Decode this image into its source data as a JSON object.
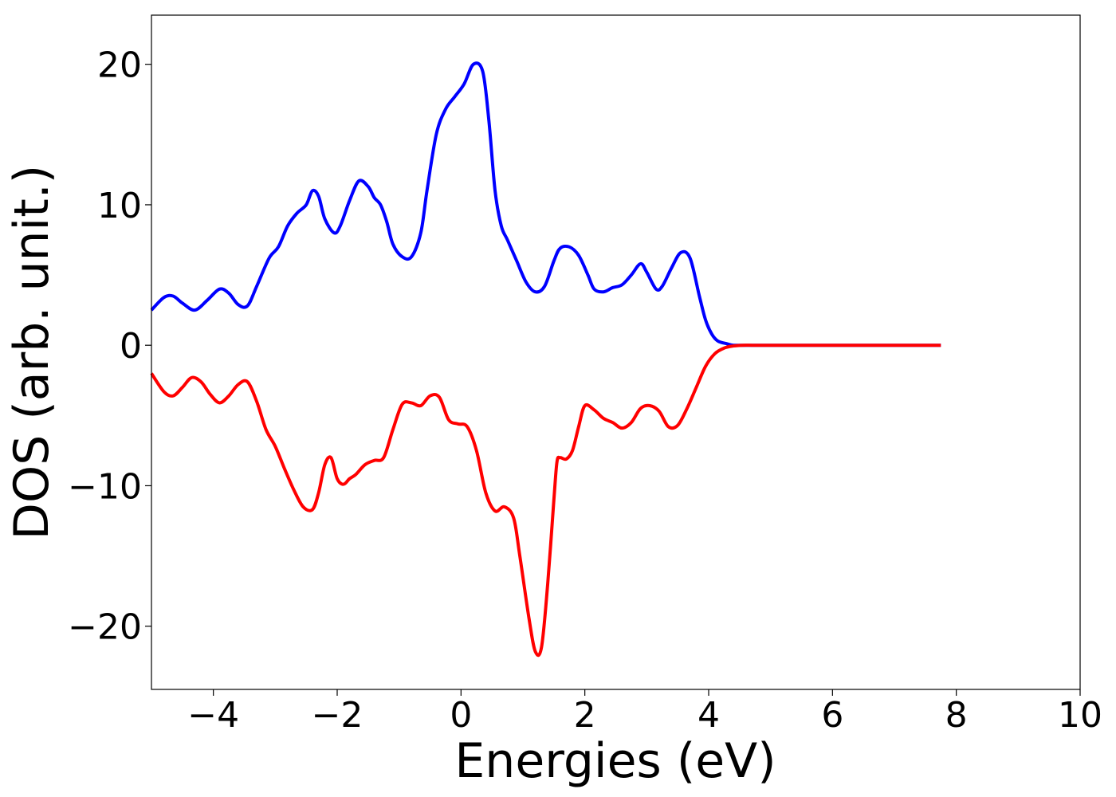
{
  "chart_data": {
    "type": "line",
    "xlabel": "Energies (eV)",
    "ylabel": "DOS (arb. unit.)",
    "xlim": [
      -5,
      10
    ],
    "ylim": [
      -24.5,
      23.5
    ],
    "grid": false,
    "xticks": [
      -4,
      -2,
      0,
      2,
      4,
      6,
      8,
      10
    ],
    "xtick_labels": [
      "−4",
      "−2",
      "0",
      "2",
      "4",
      "6",
      "8",
      "10"
    ],
    "yticks": [
      -20,
      -10,
      0,
      10,
      20
    ],
    "ytick_labels": [
      "−20",
      "−10",
      "0",
      "10",
      "20"
    ],
    "series": [
      {
        "color": "#0000ff",
        "x": [
          -5.0,
          -4.8,
          -4.65,
          -4.5,
          -4.3,
          -4.1,
          -3.9,
          -3.75,
          -3.6,
          -3.45,
          -3.3,
          -3.1,
          -2.95,
          -2.8,
          -2.65,
          -2.5,
          -2.4,
          -2.3,
          -2.2,
          -2.05,
          -1.95,
          -1.8,
          -1.65,
          -1.5,
          -1.4,
          -1.3,
          -1.2,
          -1.1,
          -0.95,
          -0.8,
          -0.65,
          -0.55,
          -0.4,
          -0.25,
          -0.1,
          0.05,
          0.2,
          0.35,
          0.45,
          0.55,
          0.65,
          0.75,
          0.9,
          1.05,
          1.2,
          1.35,
          1.5,
          1.6,
          1.75,
          1.9,
          2.05,
          2.15,
          2.3,
          2.45,
          2.6,
          2.75,
          2.9,
          3.0,
          3.15,
          3.25,
          3.4,
          3.55,
          3.7,
          3.85,
          3.95,
          4.05,
          4.15,
          4.3,
          4.4,
          4.55,
          4.7,
          4.9,
          5.1,
          5.5,
          6.0,
          7.0,
          7.75
        ],
        "y": [
          2.5,
          3.4,
          3.5,
          3.0,
          2.5,
          3.2,
          4.0,
          3.7,
          2.9,
          2.8,
          4.2,
          6.2,
          7.0,
          8.5,
          9.4,
          10.0,
          11.0,
          10.6,
          9.0,
          8.0,
          8.5,
          10.3,
          11.7,
          11.3,
          10.5,
          10.0,
          8.8,
          7.2,
          6.3,
          6.3,
          8.0,
          11.0,
          15.0,
          16.8,
          17.7,
          18.6,
          20.0,
          19.5,
          16.0,
          11.0,
          8.5,
          7.5,
          6.0,
          4.5,
          3.8,
          4.2,
          6.0,
          6.9,
          7.0,
          6.4,
          5.0,
          4.0,
          3.8,
          4.1,
          4.3,
          5.0,
          5.8,
          5.2,
          4.0,
          4.2,
          5.5,
          6.6,
          6.2,
          3.5,
          1.8,
          0.8,
          0.3,
          0.1,
          0.0,
          0.0,
          0.0,
          0.0,
          0.0,
          0.0,
          0.0,
          0.0,
          0.0
        ]
      },
      {
        "color": "#ff0000",
        "x": [
          -5.0,
          -4.8,
          -4.65,
          -4.5,
          -4.35,
          -4.2,
          -4.05,
          -3.9,
          -3.75,
          -3.6,
          -3.45,
          -3.3,
          -3.15,
          -3.0,
          -2.85,
          -2.7,
          -2.55,
          -2.4,
          -2.3,
          -2.2,
          -2.1,
          -2.0,
          -1.9,
          -1.8,
          -1.7,
          -1.55,
          -1.4,
          -1.25,
          -1.1,
          -0.95,
          -0.8,
          -0.65,
          -0.5,
          -0.35,
          -0.2,
          -0.05,
          0.1,
          0.25,
          0.4,
          0.55,
          0.7,
          0.85,
          0.95,
          1.1,
          1.2,
          1.3,
          1.4,
          1.5,
          1.55,
          1.6,
          1.7,
          1.8,
          1.9,
          2.0,
          2.15,
          2.3,
          2.45,
          2.6,
          2.75,
          2.9,
          3.05,
          3.2,
          3.35,
          3.5,
          3.65,
          3.8,
          3.95,
          4.1,
          4.25,
          4.4,
          4.55,
          4.7,
          4.85,
          5.0,
          5.2,
          5.5,
          6.0,
          7.0,
          7.75
        ],
        "y": [
          -2.0,
          -3.3,
          -3.6,
          -3.0,
          -2.3,
          -2.6,
          -3.5,
          -4.1,
          -3.6,
          -2.8,
          -2.6,
          -4.0,
          -6.0,
          -7.2,
          -8.8,
          -10.3,
          -11.5,
          -11.7,
          -10.5,
          -8.5,
          -8.0,
          -9.5,
          -9.9,
          -9.5,
          -9.2,
          -8.5,
          -8.2,
          -8.0,
          -6.0,
          -4.2,
          -4.1,
          -4.3,
          -3.6,
          -3.7,
          -5.3,
          -5.6,
          -5.8,
          -7.5,
          -10.5,
          -11.8,
          -11.5,
          -12.3,
          -15.0,
          -19.5,
          -21.8,
          -21.5,
          -17.0,
          -11.0,
          -8.3,
          -8.0,
          -8.1,
          -7.5,
          -5.8,
          -4.3,
          -4.6,
          -5.2,
          -5.5,
          -5.9,
          -5.5,
          -4.5,
          -4.3,
          -4.7,
          -5.8,
          -5.7,
          -4.5,
          -3.0,
          -1.5,
          -0.6,
          -0.2,
          -0.05,
          0.0,
          0.0,
          0.0,
          0.0,
          0.0,
          0.0,
          0.0,
          0.0,
          0.0
        ]
      }
    ]
  }
}
